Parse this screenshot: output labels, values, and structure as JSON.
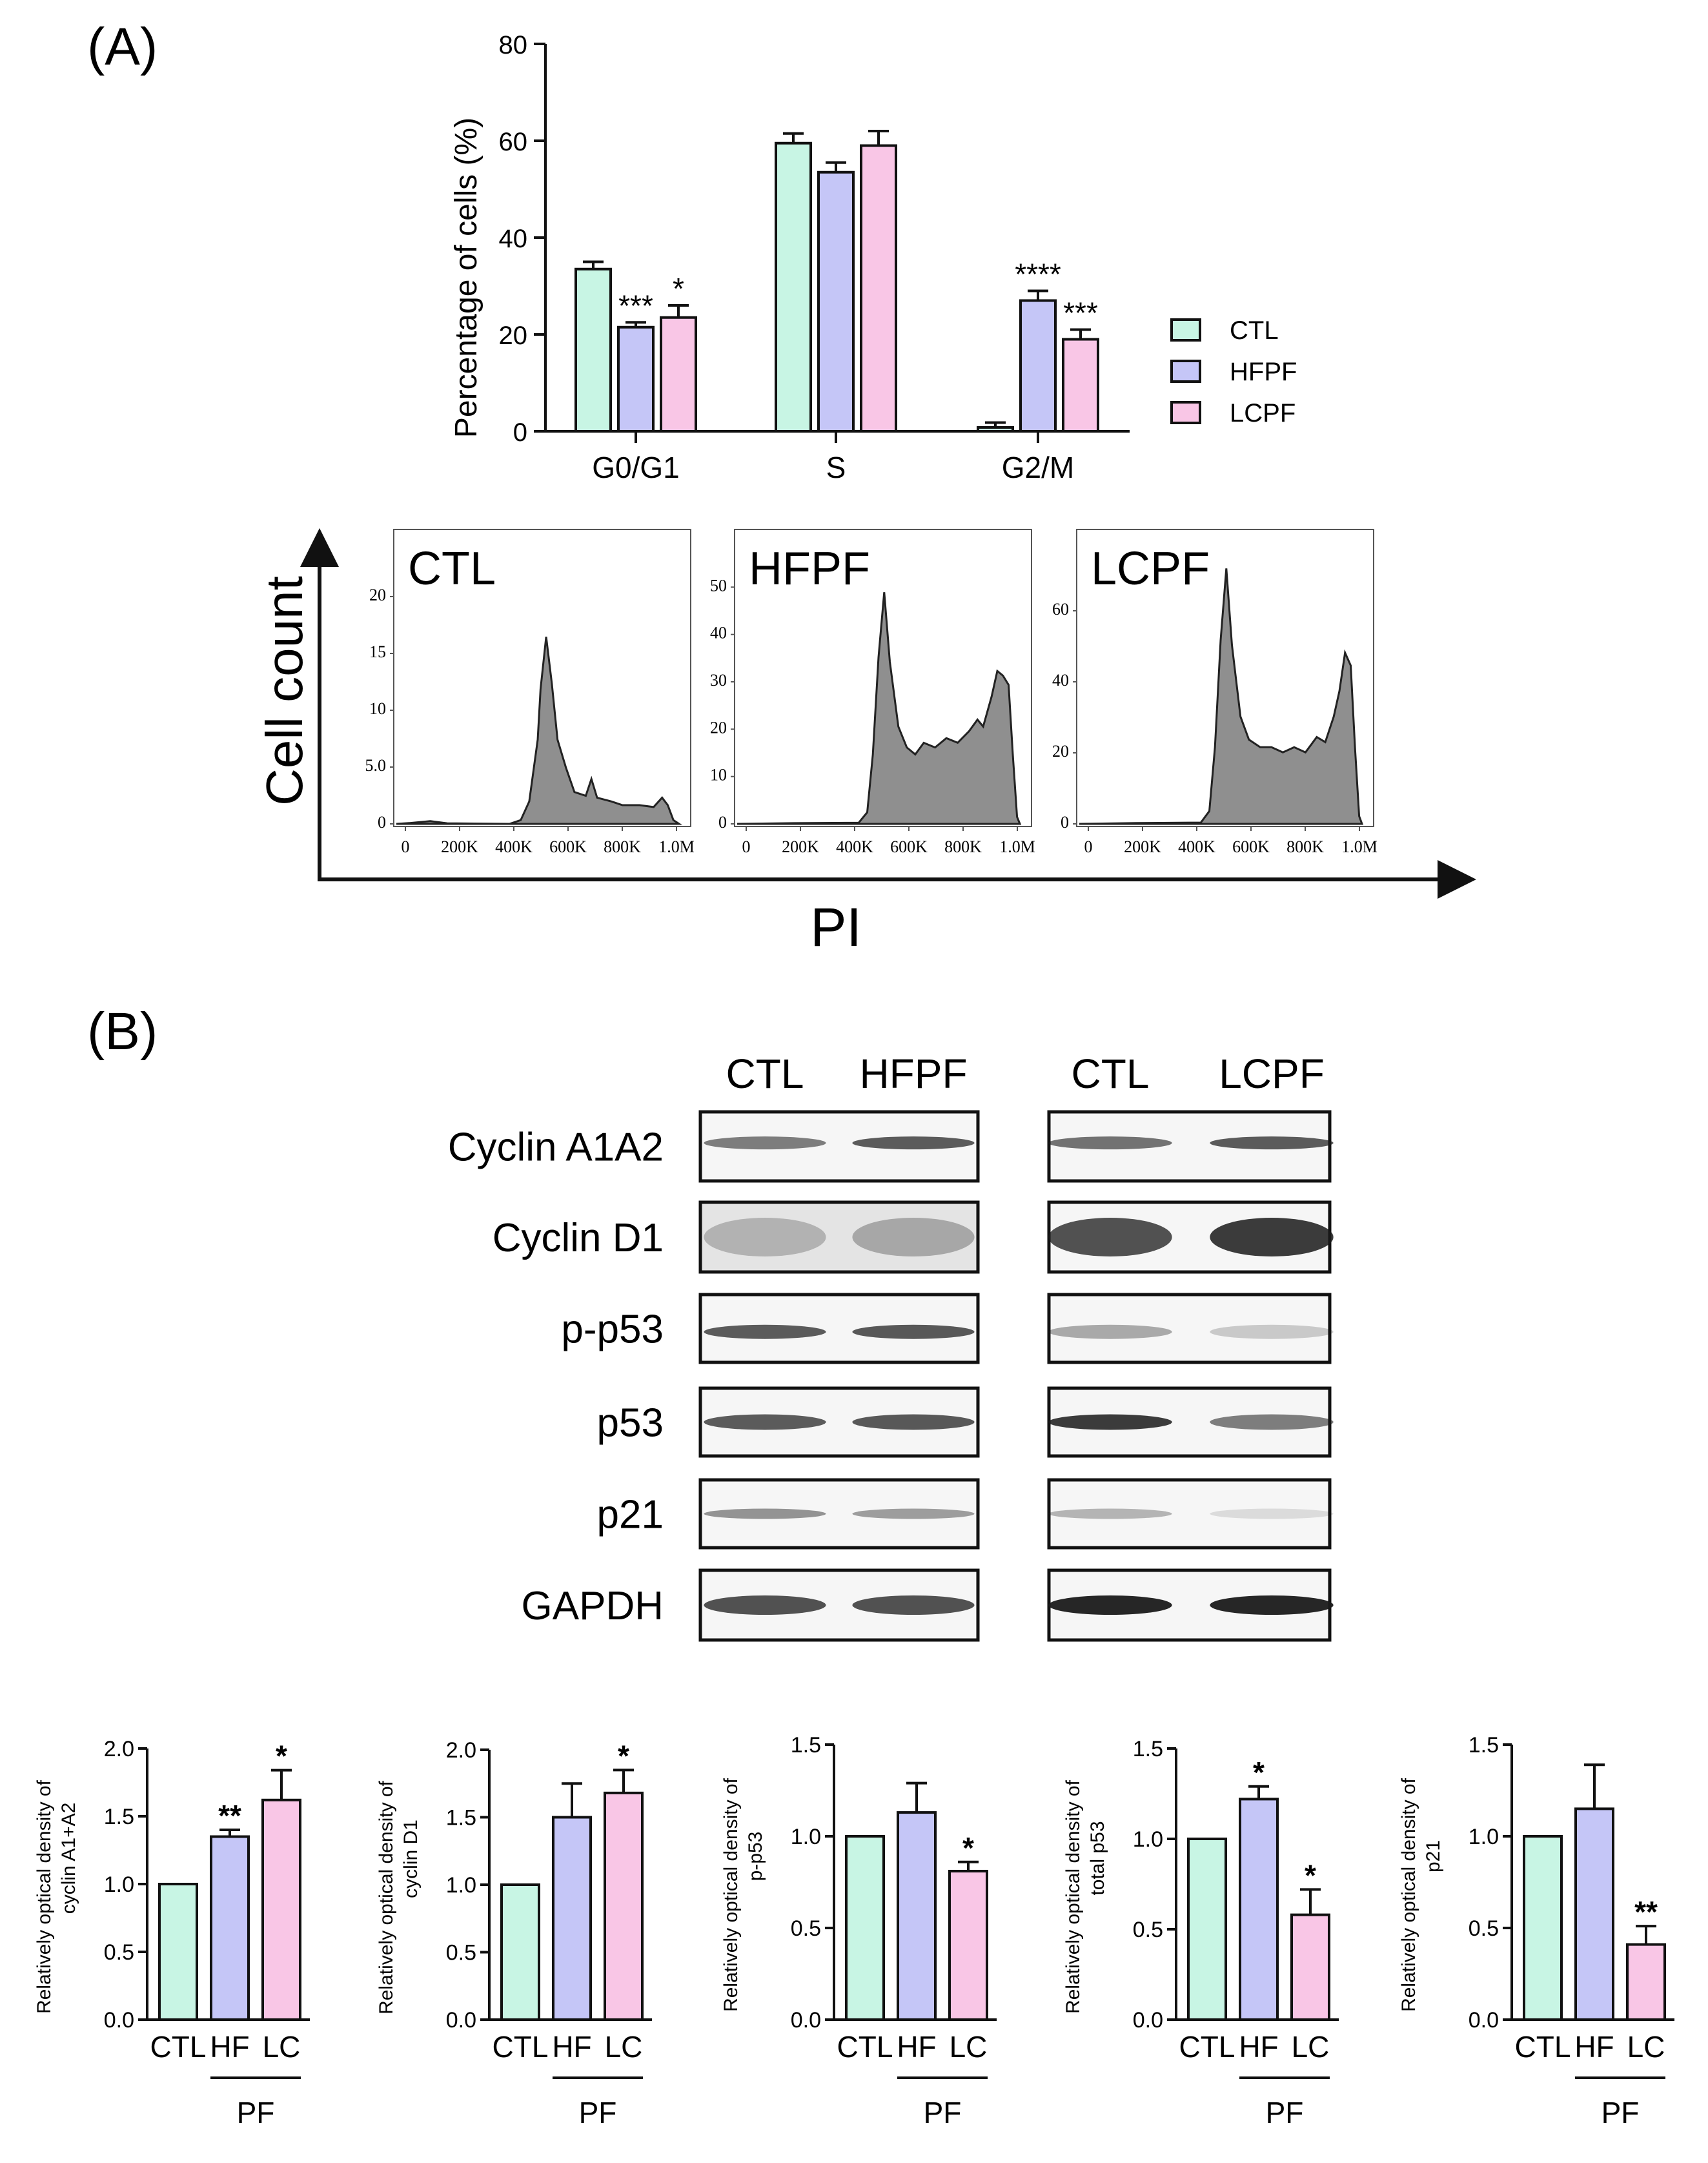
{
  "panel_a": {
    "label": "(A)",
    "bar_chart": {
      "type": "bar",
      "ylabel": "Percentage of cells (%)",
      "ylim": [
        0,
        80
      ],
      "yticks": [
        "0",
        "20",
        "40",
        "60",
        "80"
      ],
      "categories": [
        "G0/G1",
        "S",
        "G2/M"
      ],
      "series": [
        {
          "name": "CTL",
          "color": "#c8f5e4",
          "values": [
            33.5,
            59.5,
            0.8
          ],
          "errors": [
            1.5,
            2.0,
            1.0
          ],
          "stars": [
            "",
            "",
            ""
          ]
        },
        {
          "name": "HFPF",
          "color": "#c5c6f7",
          "values": [
            21.5,
            53.5,
            27.0
          ],
          "errors": [
            1.0,
            2.0,
            2.0
          ],
          "stars": [
            "***",
            "",
            "****"
          ]
        },
        {
          "name": "LCPF",
          "color": "#f9c6e6",
          "values": [
            23.5,
            59.0,
            19.0
          ],
          "errors": [
            2.5,
            3.0,
            2.0
          ],
          "stars": [
            "*",
            "",
            "***"
          ]
        }
      ]
    },
    "histograms": {
      "y_axis_title": "Cell count",
      "x_axis_title": "PI",
      "xtick_labels": [
        "0",
        "200K",
        "400K",
        "600K",
        "800K",
        "1.0M"
      ],
      "panels": [
        {
          "name": "CTL",
          "yticks": [
            "0",
            "5.0",
            "10",
            "15",
            "20"
          ]
        },
        {
          "name": "HFPF",
          "yticks": [
            "0",
            "10",
            "20",
            "30",
            "40",
            "50"
          ]
        },
        {
          "name": "LCPF",
          "yticks": [
            "0",
            "20",
            "40",
            "60"
          ]
        }
      ]
    }
  },
  "panel_b": {
    "label": "(B)",
    "blot_groups": [
      {
        "lanes": [
          "CTL",
          "HFPF"
        ]
      },
      {
        "lanes": [
          "CTL",
          "LCPF"
        ]
      }
    ],
    "proteins": [
      "Cyclin A1A2",
      "Cyclin D1",
      "p-p53",
      "p53",
      "p21",
      "GAPDH"
    ],
    "group_label": "PF",
    "chart_data": [
      {
        "type": "bar",
        "ylabel_lines": [
          "Relatively optical density of",
          "cyclin A1+A2"
        ],
        "categories": [
          "CTL",
          "HF",
          "LC"
        ],
        "values": [
          1.0,
          1.35,
          1.62
        ],
        "errors": [
          0,
          0.05,
          0.22
        ],
        "stars": [
          "",
          "**",
          "*"
        ],
        "ylim": [
          0,
          2.0
        ],
        "yticks": [
          "0.0",
          "0.5",
          "1.0",
          "1.5",
          "2.0"
        ]
      },
      {
        "type": "bar",
        "ylabel_lines": [
          "Relatively optical density of",
          "cyclin D1"
        ],
        "categories": [
          "CTL",
          "HF",
          "LC"
        ],
        "values": [
          1.0,
          1.5,
          1.68
        ],
        "errors": [
          0,
          0.25,
          0.17
        ],
        "stars": [
          "",
          "",
          "*"
        ],
        "ylim": [
          0,
          2.0
        ],
        "yticks": [
          "0.0",
          "0.5",
          "1.0",
          "1.5",
          "2.0"
        ]
      },
      {
        "type": "bar",
        "ylabel_lines": [
          "Relatively optical density of",
          "p-p53"
        ],
        "categories": [
          "CTL",
          "HF",
          "LC"
        ],
        "values": [
          1.0,
          1.13,
          0.81
        ],
        "errors": [
          0,
          0.16,
          0.05
        ],
        "stars": [
          "",
          "",
          "*"
        ],
        "ylim": [
          0,
          1.5
        ],
        "yticks": [
          "0.0",
          "0.5",
          "1.0",
          "1.5"
        ]
      },
      {
        "type": "bar",
        "ylabel_lines": [
          "Relatively optical density of",
          "total p53"
        ],
        "categories": [
          "CTL",
          "HF",
          "LC"
        ],
        "values": [
          1.0,
          1.22,
          0.58
        ],
        "errors": [
          0,
          0.07,
          0.14
        ],
        "stars": [
          "",
          "*",
          "*"
        ],
        "ylim": [
          0,
          1.5
        ],
        "yticks": [
          "0.0",
          "0.5",
          "1.0",
          "1.5"
        ]
      },
      {
        "type": "bar",
        "ylabel_lines": [
          "Relatively optical density of",
          "p21"
        ],
        "categories": [
          "CTL",
          "HF",
          "LC"
        ],
        "values": [
          1.0,
          1.15,
          0.41
        ],
        "errors": [
          0,
          0.24,
          0.1
        ],
        "stars": [
          "",
          "",
          "**"
        ],
        "ylim": [
          0,
          1.5
        ],
        "yticks": [
          "0.0",
          "0.5",
          "1.0",
          "1.5"
        ]
      }
    ]
  },
  "colors": {
    "ctl": "#c8f5e4",
    "hf": "#c5c6f7",
    "lc": "#f9c6e6",
    "histogram_fill": "#8f8f8f"
  }
}
